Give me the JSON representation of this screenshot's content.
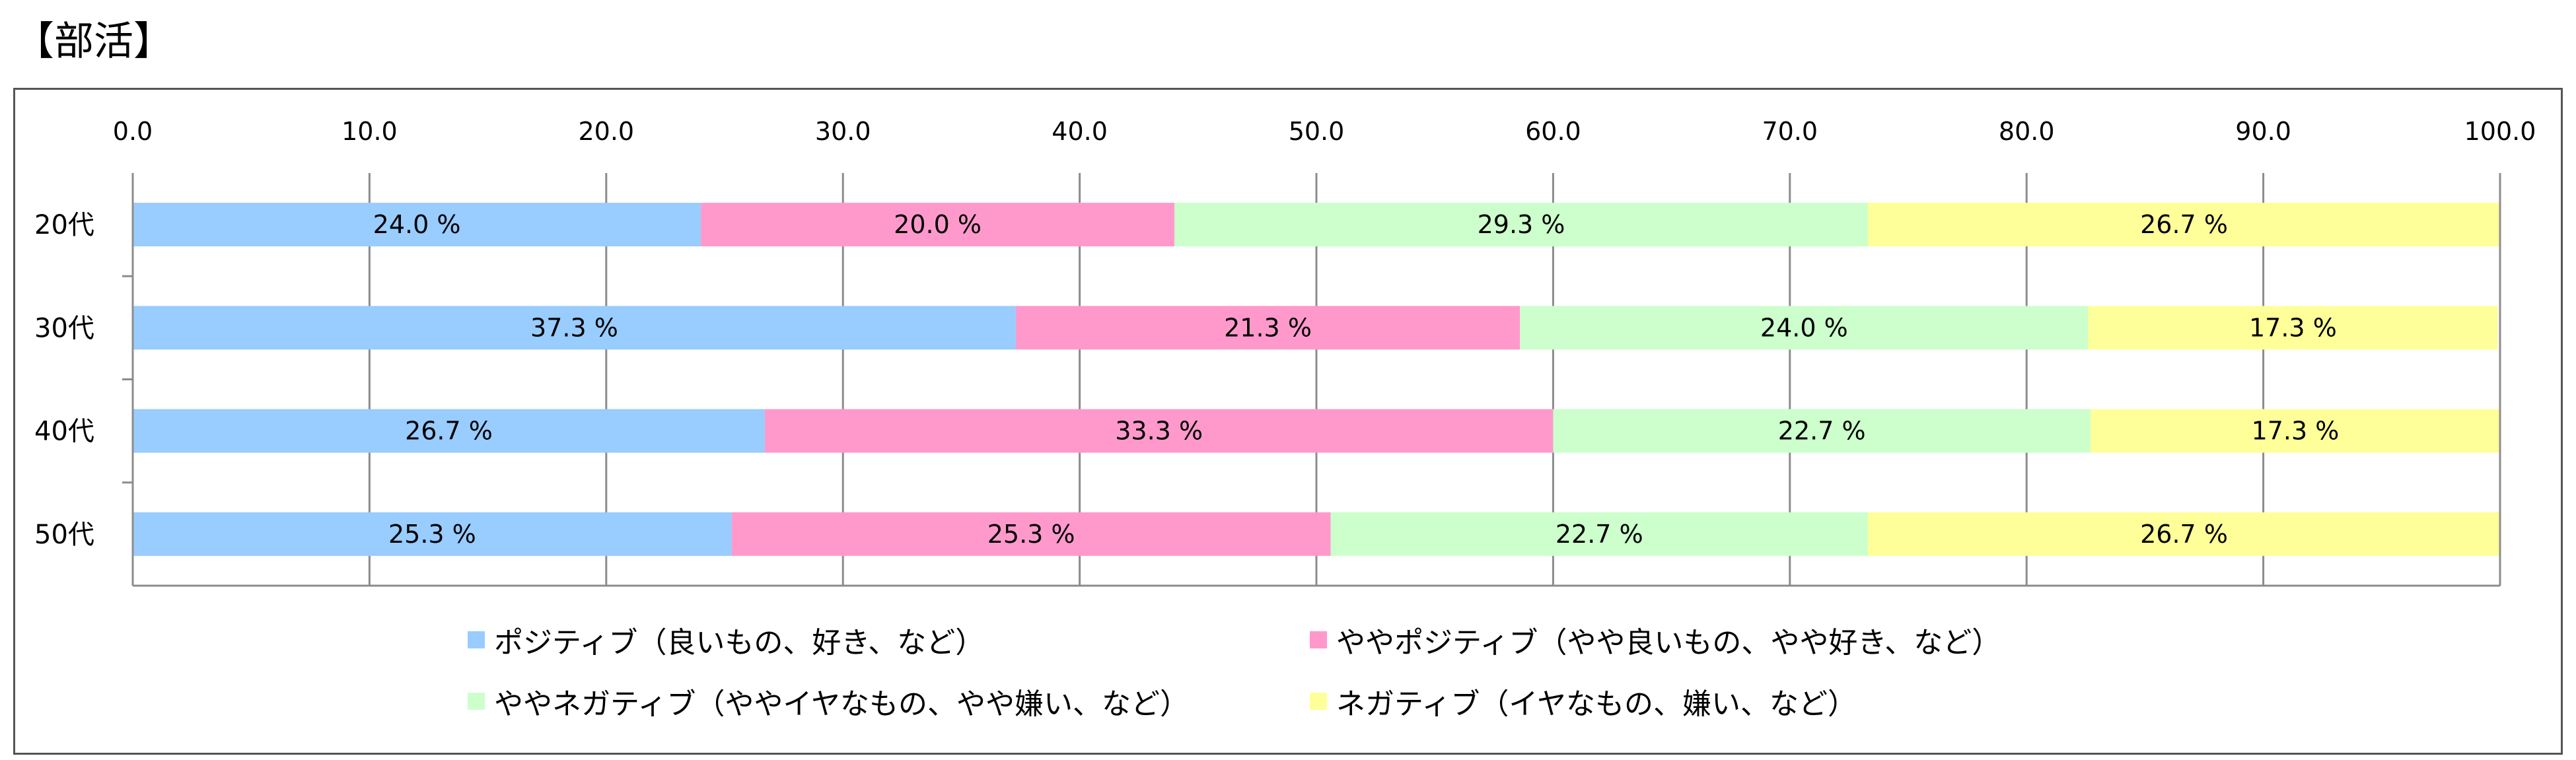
{
  "title": "【部活】",
  "chart_data": {
    "type": "bar",
    "orientation": "horizontal",
    "stacked": true,
    "categories": [
      "20代",
      "30代",
      "40代",
      "50代"
    ],
    "series": [
      {
        "name": "ポジティブ（良いもの、好き、など）",
        "color": "#99CCFF",
        "values": [
          24.0,
          37.3,
          26.7,
          25.3
        ]
      },
      {
        "name": "ややポジティブ（やや良いもの、やや好き、など）",
        "color": "#FF99CC",
        "values": [
          20.0,
          21.3,
          33.3,
          25.3
        ]
      },
      {
        "name": "ややネガティブ（ややイヤなもの、やや嫌い、など）",
        "color": "#CCFFCC",
        "values": [
          29.3,
          24.0,
          22.7,
          22.7
        ]
      },
      {
        "name": "ネガティブ（イヤなもの、嫌い、など）",
        "color": "#FFFF99",
        "values": [
          26.7,
          17.3,
          17.3,
          26.7
        ]
      }
    ],
    "data_labels": [
      [
        "24.0 %",
        "37.3 %",
        "26.7 %",
        "25.3 %"
      ],
      [
        "20.0 %",
        "21.3 %",
        "33.3 %",
        "25.3 %"
      ],
      [
        "29.3 %",
        "24.0 %",
        "22.7 %",
        "22.7 %"
      ],
      [
        "26.7 %",
        "17.3 %",
        "17.3 %",
        "26.7 %"
      ]
    ],
    "xlim": [
      0,
      100
    ],
    "x_ticks": [
      "0.0",
      "10.0",
      "20.0",
      "30.0",
      "40.0",
      "50.0",
      "60.0",
      "70.0",
      "80.0",
      "90.0",
      "100.0"
    ],
    "x_axis_position": "top",
    "grid": true,
    "legend_position": "bottom",
    "xlabel": "",
    "ylabel": ""
  }
}
